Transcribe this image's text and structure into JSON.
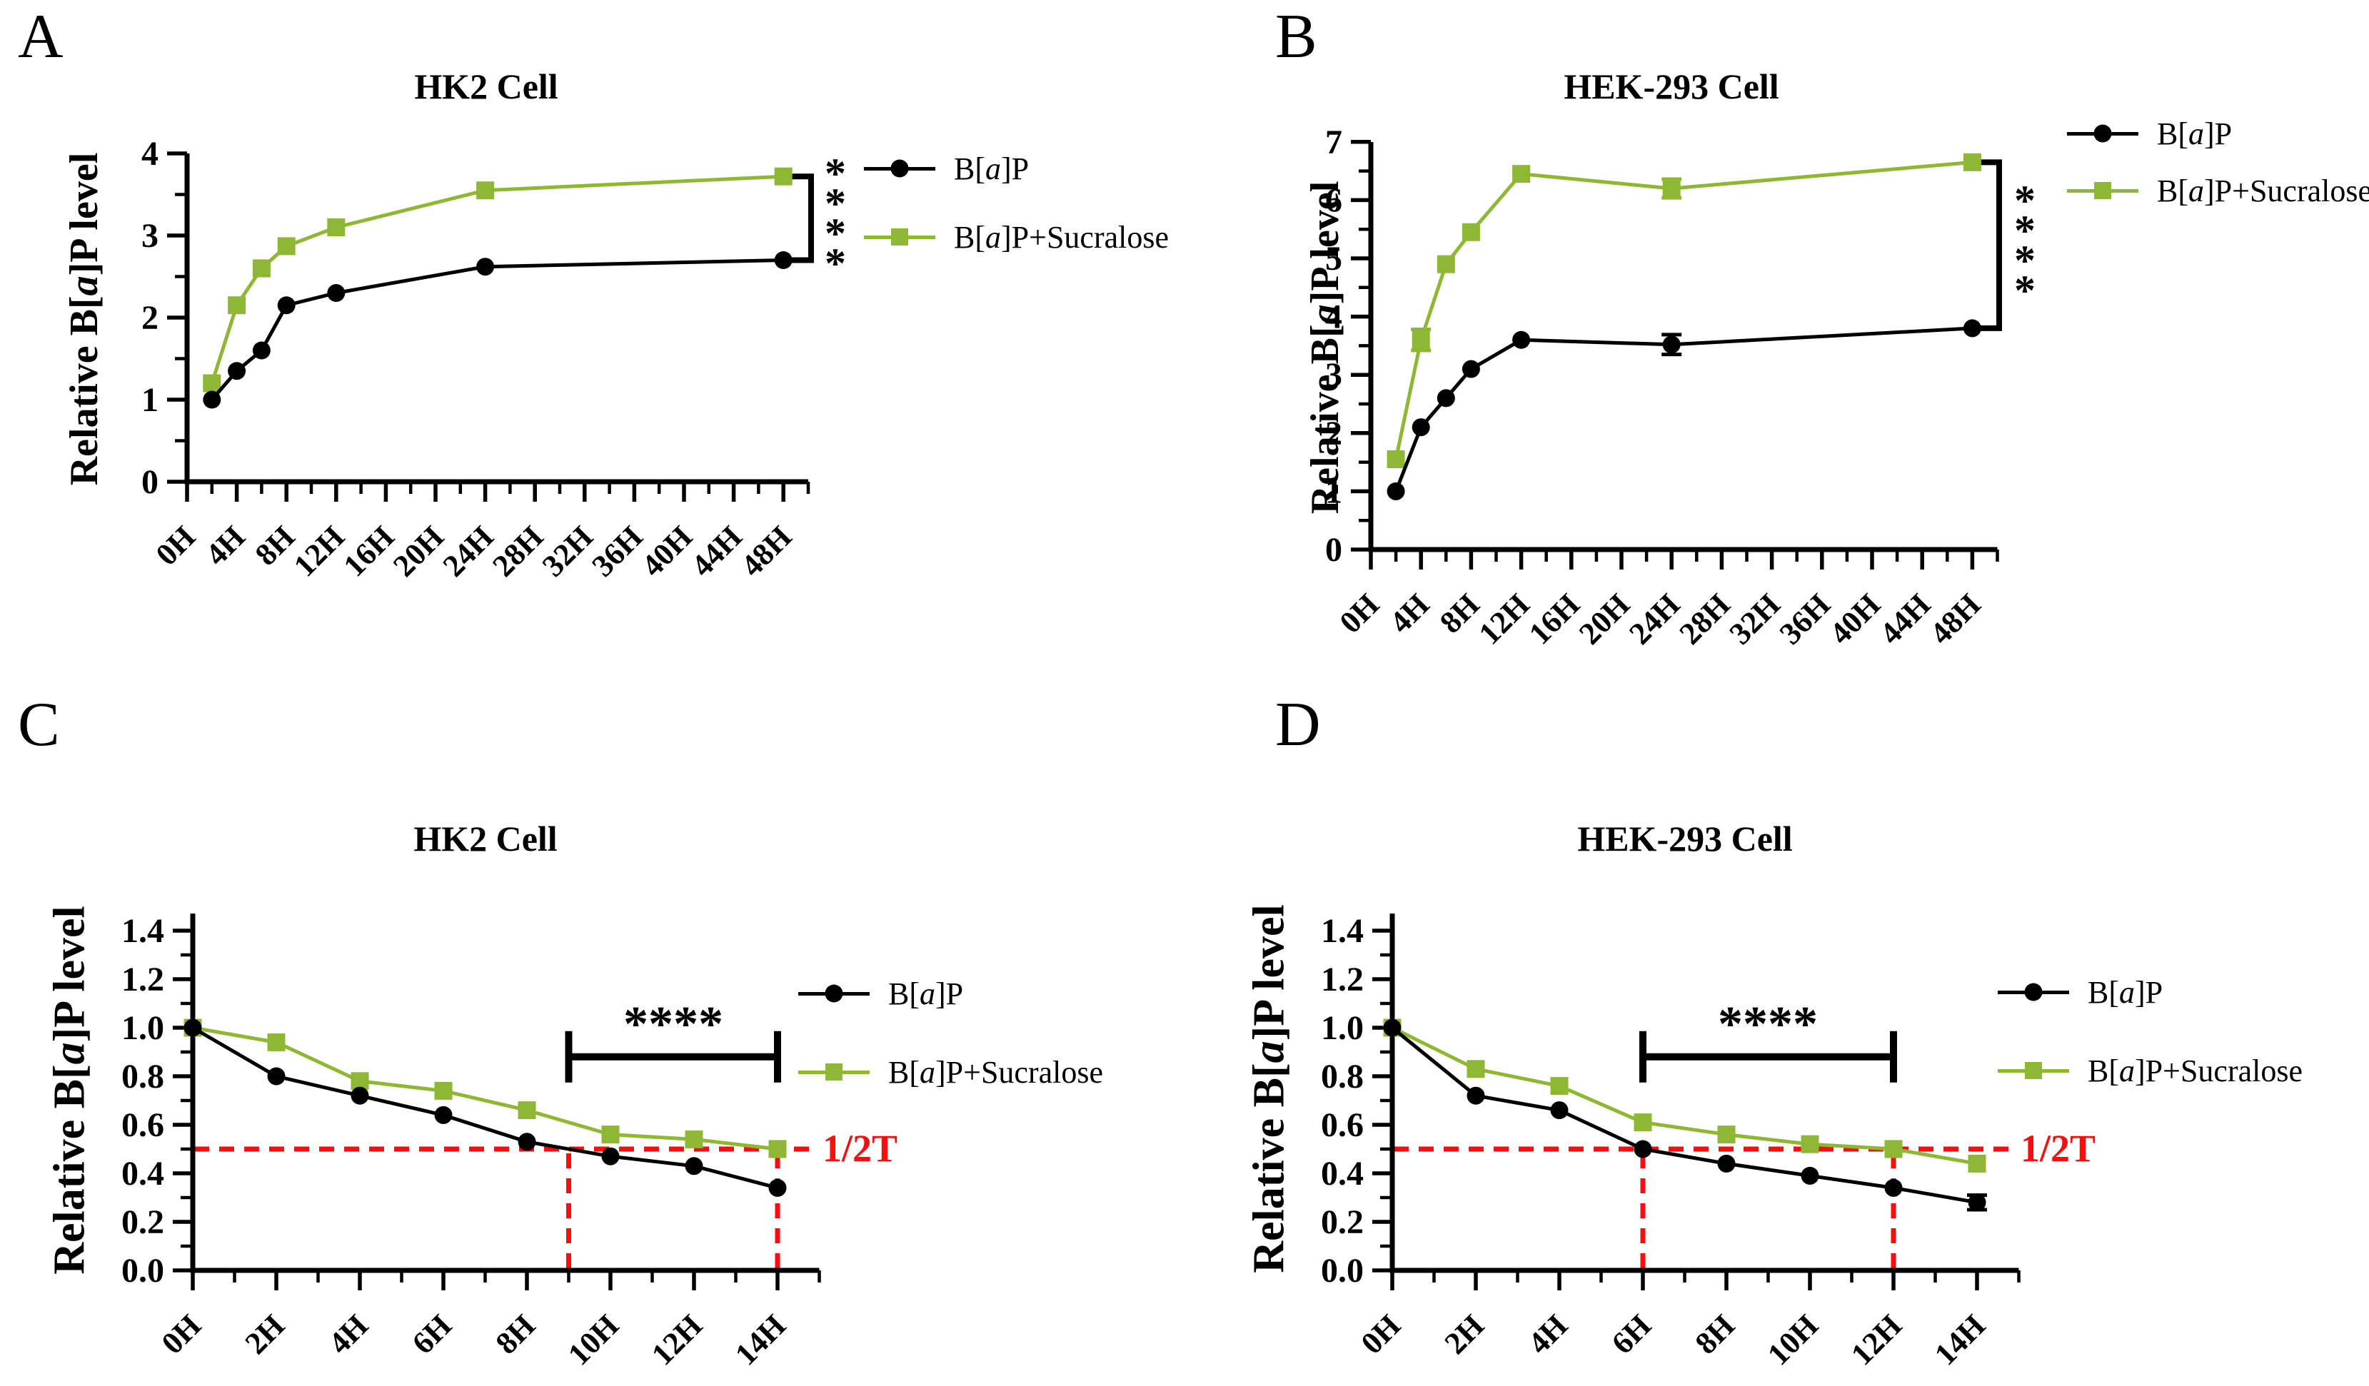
{
  "figure": {
    "colors": {
      "black": "#000000",
      "green": "#8EB733",
      "red": "#f50f0f"
    },
    "legend": {
      "items": [
        {
          "label": "B[a]P",
          "marker": "circle",
          "color_key": "black"
        },
        {
          "label": "B[a]P+Sucralose",
          "marker": "square",
          "color_key": "green"
        }
      ]
    }
  },
  "chart_data": [
    {
      "id": "A",
      "type": "line",
      "panel_letter": "A",
      "title": "HK2 Cell",
      "ylabel": "Relative B[a]P level",
      "x": {
        "unit": "H",
        "values_hours": [
          2,
          4,
          6,
          8,
          12,
          24,
          48
        ],
        "tick_labels": [
          "0H",
          "4H",
          "8H",
          "12H",
          "16H",
          "20H",
          "24H",
          "28H",
          "32H",
          "36H",
          "40H",
          "44H",
          "48H"
        ],
        "major_step": 4,
        "minor_step": 2,
        "axis_max": 50,
        "label_max": 48
      },
      "y": {
        "ylim": [
          0,
          4
        ],
        "major_step": 1,
        "minor_step": 0.5,
        "label_max": 4,
        "tick_labels": [
          "0",
          "1",
          "2",
          "3",
          "4"
        ]
      },
      "series": [
        {
          "name": "B[a]P",
          "key": "bap",
          "marker": "circle",
          "color_key": "black",
          "values": [
            1.0,
            1.35,
            1.6,
            2.15,
            2.3,
            2.62,
            2.7
          ],
          "errors": [
            0,
            0,
            0,
            0,
            0,
            0,
            0
          ]
        },
        {
          "name": "B[a]P+Sucralose",
          "key": "bap_sucralose",
          "marker": "square",
          "color_key": "green",
          "values": [
            1.2,
            2.15,
            2.6,
            2.87,
            3.1,
            3.55,
            3.72
          ],
          "errors": [
            0,
            0,
            0,
            0,
            0,
            0,
            0
          ]
        }
      ],
      "significance": {
        "label": "****",
        "orientation": "vertical",
        "from_value": 3.72,
        "to_value": 2.7
      },
      "half_life": null
    },
    {
      "id": "B",
      "type": "line",
      "panel_letter": "B",
      "title": "HEK-293 Cell",
      "ylabel": "Relative B[a]P level",
      "x": {
        "unit": "H",
        "values_hours": [
          2,
          4,
          6,
          8,
          12,
          24,
          48
        ],
        "tick_labels": [
          "0H",
          "4H",
          "8H",
          "12H",
          "16H",
          "20H",
          "24H",
          "28H",
          "32H",
          "36H",
          "40H",
          "44H",
          "48H"
        ],
        "major_step": 4,
        "minor_step": 2,
        "axis_max": 50,
        "label_max": 48
      },
      "y": {
        "ylim": [
          0,
          7
        ],
        "major_step": 1,
        "minor_step": 0.5,
        "label_max": 7,
        "tick_labels": [
          "0",
          "1",
          "2",
          "3",
          "4",
          "5",
          "6",
          "7"
        ]
      },
      "series": [
        {
          "name": "B[a]P",
          "key": "bap",
          "marker": "circle",
          "color_key": "black",
          "values": [
            1.0,
            2.1,
            2.6,
            3.1,
            3.6,
            3.52,
            3.8
          ],
          "errors": [
            0,
            0,
            0,
            0,
            0,
            0.17,
            0
          ]
        },
        {
          "name": "B[a]P+Sucralose",
          "key": "bap_sucralose",
          "marker": "square",
          "color_key": "green",
          "values": [
            1.55,
            3.6,
            4.9,
            5.45,
            6.45,
            6.2,
            6.65
          ],
          "errors": [
            0,
            0.18,
            0,
            0,
            0,
            0.16,
            0
          ]
        }
      ],
      "significance": {
        "label": "****",
        "orientation": "vertical",
        "from_value": 6.65,
        "to_value": 3.8
      },
      "half_life": null
    },
    {
      "id": "C",
      "type": "line",
      "panel_letter": "C",
      "title": "HK2 Cell",
      "ylabel": "Relative B[a]P level",
      "x": {
        "unit": "H",
        "values_hours": [
          0,
          2,
          4,
          6,
          8,
          10,
          12,
          14
        ],
        "tick_labels": [
          "0H",
          "2H",
          "4H",
          "6H",
          "8H",
          "10H",
          "12H",
          "14H"
        ],
        "major_step": 2,
        "minor_step": 1,
        "axis_max": 15,
        "label_max": 14
      },
      "y": {
        "ylim": [
          0,
          1.4
        ],
        "major_step": 0.2,
        "minor_step": 0.1,
        "label_max": 1.4,
        "tick_labels": [
          "0.0",
          "0.2",
          "0.4",
          "0.6",
          "0.8",
          "1.0",
          "1.2",
          "1.4"
        ]
      },
      "series": [
        {
          "name": "B[a]P",
          "key": "bap",
          "marker": "circle",
          "color_key": "black",
          "values": [
            1.0,
            0.8,
            0.72,
            0.64,
            0.53,
            0.47,
            0.43,
            0.34
          ],
          "errors": [
            0,
            0,
            0,
            0,
            0,
            0,
            0,
            0
          ]
        },
        {
          "name": "B[a]P+Sucralose",
          "key": "bap_sucralose",
          "marker": "square",
          "color_key": "green",
          "values": [
            1.0,
            0.94,
            0.78,
            0.74,
            0.66,
            0.56,
            0.54,
            0.5
          ],
          "errors": [
            0,
            0,
            0,
            0,
            0,
            0,
            0,
            0
          ]
        }
      ],
      "significance": {
        "label": "****",
        "orientation": "horizontal",
        "y_value": 0.88,
        "from_x": 9,
        "to_x": 14
      },
      "half_life": {
        "label": "1/2T",
        "y_value": 0.5,
        "vlines_hours": [
          9,
          14
        ]
      }
    },
    {
      "id": "D",
      "type": "line",
      "panel_letter": "D",
      "title": "HEK-293 Cell",
      "ylabel": "Relative B[a]P level",
      "x": {
        "unit": "H",
        "values_hours": [
          0,
          2,
          4,
          6,
          8,
          10,
          12,
          14
        ],
        "tick_labels": [
          "0H",
          "2H",
          "4H",
          "6H",
          "8H",
          "10H",
          "12H",
          "14H"
        ],
        "major_step": 2,
        "minor_step": 1,
        "axis_max": 15,
        "label_max": 14
      },
      "y": {
        "ylim": [
          0,
          1.4
        ],
        "major_step": 0.2,
        "minor_step": 0.1,
        "label_max": 1.4,
        "tick_labels": [
          "0.0",
          "0.2",
          "0.4",
          "0.6",
          "0.8",
          "1.0",
          "1.2",
          "1.4"
        ]
      },
      "series": [
        {
          "name": "B[a]P",
          "key": "bap",
          "marker": "circle",
          "color_key": "black",
          "values": [
            1.0,
            0.72,
            0.66,
            0.5,
            0.44,
            0.39,
            0.34,
            0.28
          ],
          "errors": [
            0,
            0,
            0,
            0,
            0,
            0,
            0,
            0.03
          ]
        },
        {
          "name": "B[a]P+Sucralose",
          "key": "bap_sucralose",
          "marker": "square",
          "color_key": "green",
          "values": [
            1.0,
            0.83,
            0.76,
            0.61,
            0.56,
            0.52,
            0.5,
            0.44
          ],
          "errors": [
            0,
            0,
            0,
            0,
            0,
            0,
            0,
            0
          ]
        }
      ],
      "significance": {
        "label": "****",
        "orientation": "horizontal",
        "y_value": 0.88,
        "from_x": 6,
        "to_x": 12
      },
      "half_life": {
        "label": "1/2T",
        "y_value": 0.5,
        "vlines_hours": [
          6,
          12
        ]
      }
    }
  ]
}
